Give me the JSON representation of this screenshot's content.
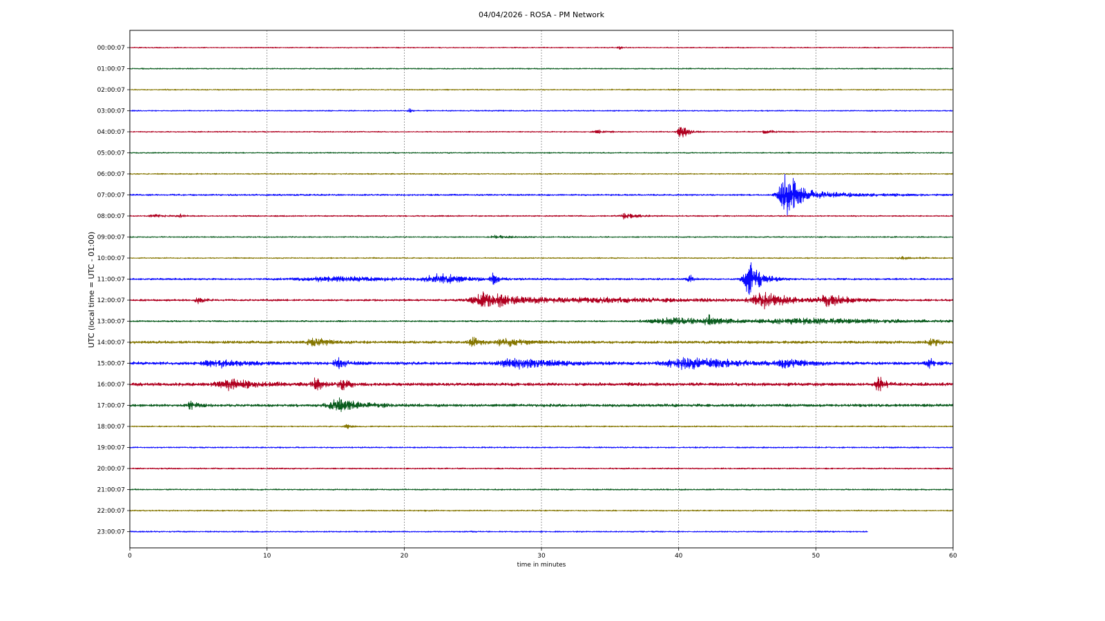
{
  "chart_data": {
    "type": "line",
    "title": "04/04/2026 - ROSA - PM Network",
    "xlabel": "time in minutes",
    "ylabel": "UTC (local time = UTC - 01:00)",
    "xlim": [
      0,
      60
    ],
    "xticks": [
      "0",
      "10",
      "20",
      "30",
      "40",
      "50",
      "60"
    ],
    "grid": "vertical dashed",
    "colors": [
      "#b00020",
      "#0a5c1e",
      "#857600",
      "#0a0aff"
    ],
    "rows": [
      {
        "label": "00:00:07",
        "noise": 0.7,
        "events": [
          {
            "t": 35.7,
            "amp": 3,
            "dur": 0.5
          }
        ]
      },
      {
        "label": "01:00:07",
        "noise": 0.8,
        "events": []
      },
      {
        "label": "02:00:07",
        "noise": 0.9,
        "events": []
      },
      {
        "label": "03:00:07",
        "noise": 0.8,
        "events": [
          {
            "t": 20.4,
            "amp": 4,
            "dur": 0.3
          }
        ]
      },
      {
        "label": "04:00:07",
        "noise": 0.8,
        "events": [
          {
            "t": 34.1,
            "amp": 4,
            "dur": 1.0
          },
          {
            "t": 40.2,
            "amp": 14,
            "dur": 0.8
          },
          {
            "t": 46.4,
            "amp": 4,
            "dur": 0.8
          }
        ]
      },
      {
        "label": "05:00:07",
        "noise": 0.8,
        "events": []
      },
      {
        "label": "06:00:07",
        "noise": 0.9,
        "events": []
      },
      {
        "label": "07:00:07",
        "noise": 1.3,
        "events": [
          {
            "t": 47.9,
            "amp": 52,
            "dur": 1.5
          },
          {
            "t": 52.0,
            "amp": 3,
            "dur": 6.0
          }
        ]
      },
      {
        "label": "08:00:07",
        "noise": 1.0,
        "events": [
          {
            "t": 1.8,
            "amp": 3,
            "dur": 1.0
          },
          {
            "t": 3.7,
            "amp": 3,
            "dur": 0.5
          },
          {
            "t": 36.2,
            "amp": 7,
            "dur": 1.0
          }
        ]
      },
      {
        "label": "09:00:07",
        "noise": 0.9,
        "events": [
          {
            "t": 26.8,
            "amp": 3,
            "dur": 1.5
          }
        ]
      },
      {
        "label": "10:00:07",
        "noise": 0.9,
        "events": [
          {
            "t": 56.5,
            "amp": 2,
            "dur": 2.0
          }
        ]
      },
      {
        "label": "11:00:07",
        "noise": 1.5,
        "events": [
          {
            "t": 22.7,
            "amp": 8,
            "dur": 3.0
          },
          {
            "t": 26.5,
            "amp": 9,
            "dur": 0.5
          },
          {
            "t": 40.8,
            "amp": 8,
            "dur": 0.5
          },
          {
            "t": 45.2,
            "amp": 36,
            "dur": 1.2
          },
          {
            "t": 15,
            "amp": 4,
            "dur": 8.0
          }
        ]
      },
      {
        "label": "12:00:07",
        "noise": 1.6,
        "events": [
          {
            "t": 5.0,
            "amp": 5,
            "dur": 0.8
          },
          {
            "t": 26.2,
            "amp": 15,
            "dur": 3.5
          },
          {
            "t": 35,
            "amp": 4,
            "dur": 14.0
          },
          {
            "t": 46.3,
            "amp": 14,
            "dur": 2.5
          },
          {
            "t": 51.0,
            "amp": 11,
            "dur": 2.0
          }
        ]
      },
      {
        "label": "13:00:07",
        "noise": 1.2,
        "events": [
          {
            "t": 40.0,
            "amp": 6,
            "dur": 6.0
          },
          {
            "t": 42.3,
            "amp": 8,
            "dur": 1.0
          },
          {
            "t": 50.0,
            "amp": 5,
            "dur": 10.0
          }
        ]
      },
      {
        "label": "14:00:07",
        "noise": 2.4,
        "events": [
          {
            "t": 13.5,
            "amp": 7,
            "dur": 1.5
          },
          {
            "t": 25.0,
            "amp": 8,
            "dur": 1.0
          },
          {
            "t": 27.5,
            "amp": 7,
            "dur": 2.0
          },
          {
            "t": 58.5,
            "amp": 6,
            "dur": 1.0
          }
        ]
      },
      {
        "label": "15:00:07",
        "noise": 2.6,
        "events": [
          {
            "t": 6.5,
            "amp": 7,
            "dur": 3.0
          },
          {
            "t": 15.2,
            "amp": 8,
            "dur": 1.0
          },
          {
            "t": 28.5,
            "amp": 9,
            "dur": 4.0
          },
          {
            "t": 41.0,
            "amp": 10,
            "dur": 5.0
          },
          {
            "t": 48.0,
            "amp": 6,
            "dur": 2.0
          },
          {
            "t": 58.3,
            "amp": 8,
            "dur": 0.8
          }
        ]
      },
      {
        "label": "16:00:07",
        "noise": 2.8,
        "events": [
          {
            "t": 7.5,
            "amp": 9,
            "dur": 3.0
          },
          {
            "t": 13.6,
            "amp": 11,
            "dur": 0.8
          },
          {
            "t": 15.5,
            "amp": 10,
            "dur": 0.8
          },
          {
            "t": 54.6,
            "amp": 14,
            "dur": 0.8
          }
        ]
      },
      {
        "label": "17:00:07",
        "noise": 2.4,
        "events": [
          {
            "t": 4.5,
            "amp": 7,
            "dur": 0.8
          },
          {
            "t": 15.4,
            "amp": 11,
            "dur": 2.5
          }
        ]
      },
      {
        "label": "18:00:07",
        "noise": 1.0,
        "events": [
          {
            "t": 15.8,
            "amp": 4,
            "dur": 0.5
          }
        ]
      },
      {
        "label": "19:00:07",
        "noise": 1.0,
        "events": []
      },
      {
        "label": "20:00:07",
        "noise": 1.0,
        "events": []
      },
      {
        "label": "21:00:07",
        "noise": 1.0,
        "events": []
      },
      {
        "label": "22:00:07",
        "noise": 1.0,
        "events": []
      },
      {
        "label": "23:00:07",
        "noise": 1.0,
        "end": 53.8,
        "events": []
      }
    ]
  }
}
